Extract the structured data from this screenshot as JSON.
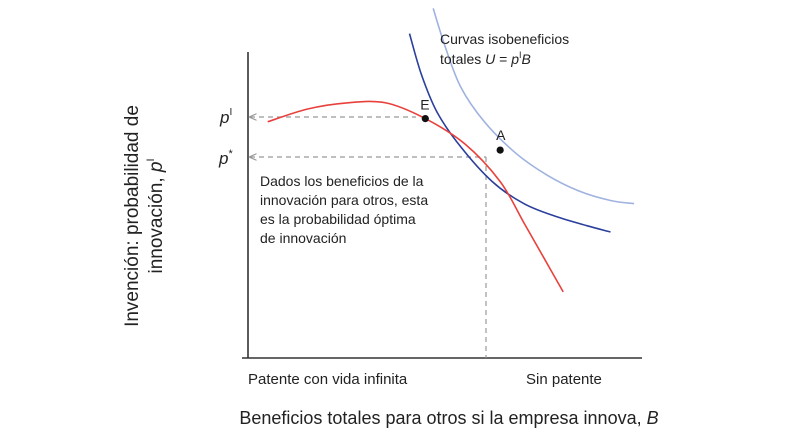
{
  "chart_data": {
    "type": "line",
    "title": "",
    "xlabel": {
      "text": "Beneficios totales para otros si la empresa innova, ",
      "var": "B"
    },
    "ylabel": {
      "line1": "Invención: probabilidad de",
      "line2": "innovación, ",
      "var": "p",
      "sup": "I"
    },
    "x_tick_labels": [
      "Patente con vida infinita",
      "Sin patente"
    ],
    "y_tick_labels": [
      {
        "base": "p",
        "sup": "I"
      },
      {
        "base": "p",
        "sup": "*"
      }
    ],
    "xlim": [
      0,
      10
    ],
    "ylim": [
      0,
      10
    ],
    "grid": false,
    "colors": {
      "axis": "#333333",
      "reaction_curve": "#e8413c",
      "isoprofit_low": "#2b3f9c",
      "isoprofit_high": "#9fb2e0",
      "guide": "#999999",
      "point": "#111111"
    },
    "series": [
      {
        "key": "reaction",
        "values": [
          [
            0.5,
            7.5
          ],
          [
            1.5,
            7.9
          ],
          [
            2.5,
            8.1
          ],
          [
            3.5,
            8.1
          ],
          [
            4.5,
            7.6
          ],
          [
            5.5,
            6.8
          ],
          [
            6.4,
            5.6
          ],
          [
            7.0,
            4.3
          ],
          [
            7.5,
            3.2
          ],
          [
            8.0,
            2.1
          ]
        ]
      },
      {
        "key": "isoprofit_low",
        "values": [
          [
            4.1,
            10.3
          ],
          [
            4.4,
            9.0
          ],
          [
            4.8,
            7.8
          ],
          [
            5.4,
            6.7
          ],
          [
            6.2,
            5.6
          ],
          [
            7.0,
            4.9
          ],
          [
            7.8,
            4.5
          ],
          [
            8.6,
            4.2
          ],
          [
            9.2,
            4.0
          ]
        ]
      },
      {
        "key": "isoprofit_high",
        "values": [
          [
            4.7,
            11.1
          ],
          [
            5.0,
            9.9
          ],
          [
            5.4,
            8.6
          ],
          [
            6.0,
            7.5
          ],
          [
            6.8,
            6.5
          ],
          [
            7.6,
            5.8
          ],
          [
            8.4,
            5.3
          ],
          [
            9.2,
            5.0
          ],
          [
            9.8,
            4.9
          ]
        ]
      }
    ],
    "points": [
      {
        "label": "E",
        "x": 4.5,
        "y": 7.6
      },
      {
        "label": "A",
        "x": 6.4,
        "y": 6.6
      }
    ],
    "annotations": {
      "curves_label": {
        "line1": "Curvas isobeneficios",
        "line2_prefix": "totales ",
        "line2_var": "U",
        "line2_eq": " = ",
        "line2_p": "p",
        "line2_sup": "I",
        "line2_b": "B"
      },
      "note_lines": [
        "Dados los beneficios de la",
        "innovación para otros, esta",
        "es la probabilidad óptima",
        "de innovación"
      ]
    }
  }
}
